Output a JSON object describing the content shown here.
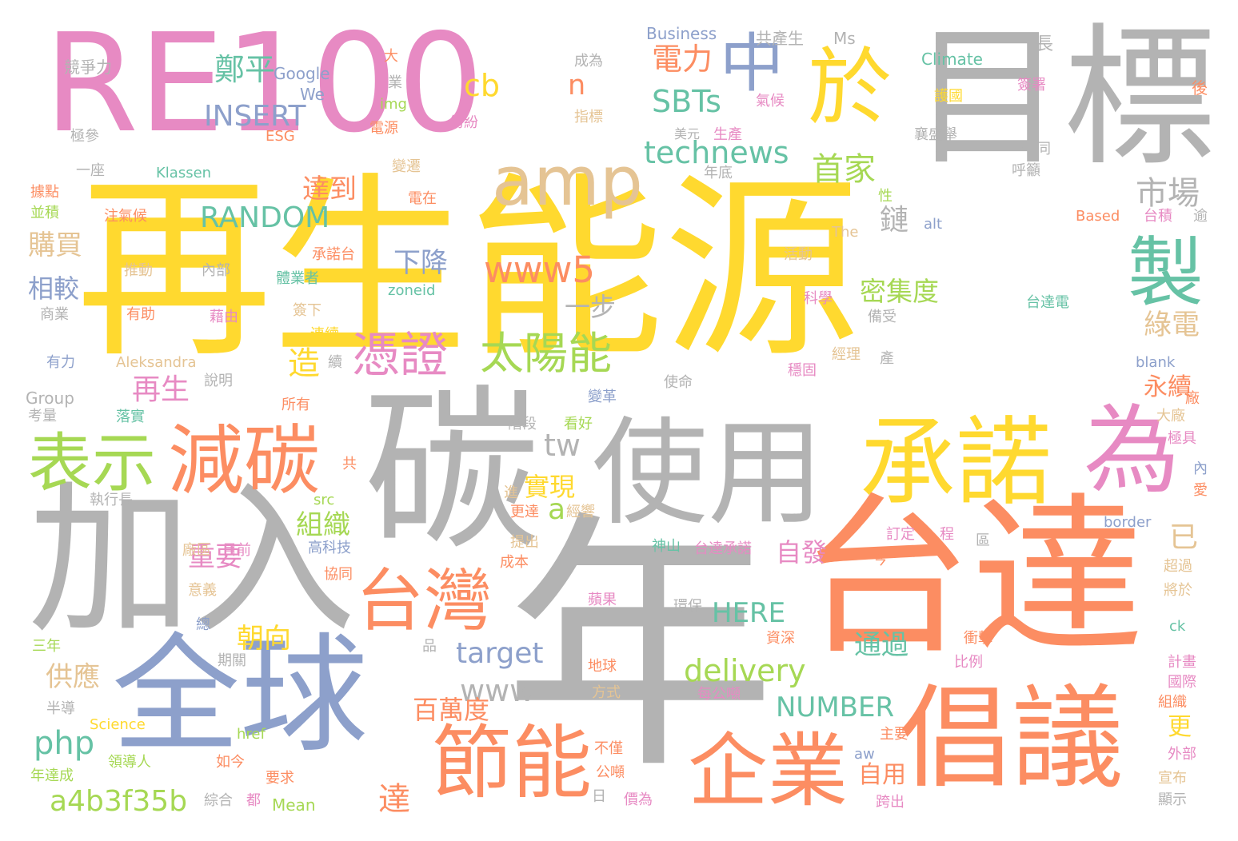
{
  "palette": {
    "yellow": "#FFD92F",
    "gray": "#B3B3B3",
    "pink": "#E78AC3",
    "orange": "#FC8D62",
    "blue": "#8DA0CB",
    "green": "#A6D854",
    "teal": "#66C2A5",
    "tan": "#E5C494"
  },
  "words": [
    {
      "text": "再生能源",
      "color": "#FFD92F"
    },
    {
      "text": "年",
      "color": "#B3B3B3"
    },
    {
      "text": "RE100",
      "color": "#E78AC3"
    },
    {
      "text": "目標",
      "color": "#B3B3B3"
    },
    {
      "text": "台達",
      "color": "#FC8D62"
    },
    {
      "text": "碳",
      "color": "#B3B3B3"
    },
    {
      "text": "加入",
      "color": "#B3B3B3"
    },
    {
      "text": "全球",
      "color": "#8DA0CB"
    },
    {
      "text": "使用",
      "color": "#B3B3B3"
    },
    {
      "text": "倡議",
      "color": "#FC8D62"
    },
    {
      "text": "承諾",
      "color": "#FFD92F"
    },
    {
      "text": "為",
      "color": "#E78AC3"
    },
    {
      "text": "企業",
      "color": "#FC8D62"
    },
    {
      "text": "節能",
      "color": "#FC8D62"
    },
    {
      "text": "減碳",
      "color": "#FC8D62"
    },
    {
      "text": "表示",
      "color": "#A6D854"
    },
    {
      "text": "於",
      "color": "#FFD92F"
    },
    {
      "text": "中",
      "color": "#8DA0CB"
    },
    {
      "text": "台灣",
      "color": "#FC8D62"
    },
    {
      "text": "製",
      "color": "#66C2A5"
    },
    {
      "text": "amp",
      "color": "#E5C494"
    },
    {
      "text": "憑證",
      "color": "#E78AC3"
    },
    {
      "text": "太陽能",
      "color": "#A6D854"
    },
    {
      "text": "www5",
      "color": "#FC8D62"
    },
    {
      "text": "technews",
      "color": "#66C2A5"
    },
    {
      "text": "RANDOM",
      "color": "#66C2A5"
    },
    {
      "text": "INSERT",
      "color": "#8DA0CB"
    },
    {
      "text": "SBTs",
      "color": "#66C2A5"
    },
    {
      "text": "首家",
      "color": "#A6D854"
    },
    {
      "text": "鄭平",
      "color": "#66C2A5"
    },
    {
      "text": "電力",
      "color": "#FC8D62"
    },
    {
      "text": "cb",
      "color": "#FFD92F"
    },
    {
      "text": "n",
      "color": "#FC8D62"
    },
    {
      "text": "市場",
      "color": "#B3B3B3"
    },
    {
      "text": "delivery",
      "color": "#A6D854"
    },
    {
      "text": "www",
      "color": "#B3B3B3"
    },
    {
      "text": "target",
      "color": "#8DA0CB"
    },
    {
      "text": "NUMBER",
      "color": "#66C2A5"
    },
    {
      "text": "a4b3f35b",
      "color": "#A6D854"
    },
    {
      "text": "php",
      "color": "#66C2A5"
    },
    {
      "text": "HERE",
      "color": "#66C2A5"
    },
    {
      "text": "tw",
      "color": "#B3B3B3"
    },
    {
      "text": "a",
      "color": "#A6D854"
    },
    {
      "text": "下降",
      "color": "#8DA0CB"
    },
    {
      "text": "一步",
      "color": "#B3B3B3"
    },
    {
      "text": "密集度",
      "color": "#A6D854"
    },
    {
      "text": "鏈",
      "color": "#B3B3B3"
    },
    {
      "text": "綠電",
      "color": "#E5C494"
    },
    {
      "text": "永續",
      "color": "#FC8D62"
    },
    {
      "text": "已",
      "color": "#E5C494"
    },
    {
      "text": "更",
      "color": "#FFD92F"
    },
    {
      "text": "達到",
      "color": "#FC8D62"
    },
    {
      "text": "購買",
      "color": "#E5C494"
    },
    {
      "text": "相較",
      "color": "#8DA0CB"
    },
    {
      "text": "造",
      "color": "#FFD92F"
    },
    {
      "text": "再生",
      "color": "#E78AC3"
    },
    {
      "text": "組織",
      "color": "#A6D854"
    },
    {
      "text": "重要",
      "color": "#E78AC3"
    },
    {
      "text": "實現",
      "color": "#FFD92F"
    },
    {
      "text": "朝向",
      "color": "#FFD92F"
    },
    {
      "text": "供應",
      "color": "#E5C494"
    },
    {
      "text": "百萬度",
      "color": "#FC8D62"
    },
    {
      "text": "通過",
      "color": "#66C2A5"
    },
    {
      "text": "自發",
      "color": "#E78AC3"
    },
    {
      "text": "自用",
      "color": "#FC8D62"
    },
    {
      "text": "達",
      "color": "#FC8D62"
    },
    {
      "text": "Business",
      "color": "#8DA0CB"
    },
    {
      "text": "共產生",
      "color": "#B3B3B3"
    },
    {
      "text": "Ms",
      "color": "#B3B3B3"
    },
    {
      "text": "長",
      "color": "#B3B3B3"
    },
    {
      "text": "Climate",
      "color": "#66C2A5"
    },
    {
      "text": "競爭力",
      "color": "#B3B3B3"
    },
    {
      "text": "Google",
      "color": "#8DA0CB"
    },
    {
      "text": "We",
      "color": "#8DA0CB"
    },
    {
      "text": "img",
      "color": "#A6D854"
    },
    {
      "text": "電源",
      "color": "#FC8D62"
    },
    {
      "text": "紛紛",
      "color": "#E78AC3"
    },
    {
      "text": "指標",
      "color": "#E5C494"
    },
    {
      "text": "成為",
      "color": "#B3B3B3"
    },
    {
      "text": "大",
      "color": "#FC8D62"
    },
    {
      "text": "業",
      "color": "#B3B3B3"
    },
    {
      "text": "護國",
      "color": "#FFD92F"
    },
    {
      "text": "簽署",
      "color": "#E78AC3"
    },
    {
      "text": "氣候",
      "color": "#E78AC3"
    },
    {
      "text": "後",
      "color": "#FC8D62"
    },
    {
      "text": "極參",
      "color": "#B3B3B3"
    },
    {
      "text": "ESG",
      "color": "#FC8D62"
    },
    {
      "text": "美元",
      "color": "#B3B3B3"
    },
    {
      "text": "生產",
      "color": "#E78AC3"
    },
    {
      "text": "襄盛舉",
      "color": "#B3B3B3"
    },
    {
      "text": "一同",
      "color": "#B3B3B3"
    },
    {
      "text": "呼籲",
      "color": "#B3B3B3"
    },
    {
      "text": "一座",
      "color": "#B3B3B3"
    },
    {
      "text": "Klassen",
      "color": "#66C2A5"
    },
    {
      "text": "變遷",
      "color": "#E5C494"
    },
    {
      "text": "年底",
      "color": "#B3B3B3"
    },
    {
      "text": "據點",
      "color": "#FC8D62"
    },
    {
      "text": "並積",
      "color": "#A6D854"
    },
    {
      "text": "注氣候",
      "color": "#FC8D62"
    },
    {
      "text": "電在",
      "color": "#FC8D62"
    },
    {
      "text": "性",
      "color": "#A6D854"
    },
    {
      "text": "Based",
      "color": "#FC8D62"
    },
    {
      "text": "台積",
      "color": "#E78AC3"
    },
    {
      "text": "逾",
      "color": "#B3B3B3"
    },
    {
      "text": "alt",
      "color": "#8DA0CB"
    },
    {
      "text": "The",
      "color": "#E5C494"
    },
    {
      "text": "承諾台",
      "color": "#FC8D62"
    },
    {
      "text": "活動",
      "color": "#E5C494"
    },
    {
      "text": "推動",
      "color": "#E5C494"
    },
    {
      "text": "內部",
      "color": "#B3B3B3"
    },
    {
      "text": "體業者",
      "color": "#66C2A5"
    },
    {
      "text": "zoneid",
      "color": "#66C2A5"
    },
    {
      "text": "科學",
      "color": "#E78AC3"
    },
    {
      "text": "台達電",
      "color": "#66C2A5"
    },
    {
      "text": "商業",
      "color": "#B3B3B3"
    },
    {
      "text": "有助",
      "color": "#FC8D62"
    },
    {
      "text": "藉由",
      "color": "#E78AC3"
    },
    {
      "text": "簽下",
      "color": "#E5C494"
    },
    {
      "text": "連續",
      "color": "#FFD92F"
    },
    {
      "text": "備受",
      "color": "#B3B3B3"
    },
    {
      "text": "有力",
      "color": "#8DA0CB"
    },
    {
      "text": "Aleksandra",
      "color": "#E5C494"
    },
    {
      "text": "續",
      "color": "#B3B3B3"
    },
    {
      "text": "經理",
      "color": "#E5C494"
    },
    {
      "text": "產",
      "color": "#B3B3B3"
    },
    {
      "text": "穩固",
      "color": "#E78AC3"
    },
    {
      "text": "blank",
      "color": "#8DA0CB"
    },
    {
      "text": "Group",
      "color": "#B3B3B3"
    },
    {
      "text": "說明",
      "color": "#B3B3B3"
    },
    {
      "text": "考量",
      "color": "#B3B3B3"
    },
    {
      "text": "所有",
      "color": "#FC8D62"
    },
    {
      "text": "使命",
      "color": "#B3B3B3"
    },
    {
      "text": "變革",
      "color": "#8DA0CB"
    },
    {
      "text": "廠",
      "color": "#FC8D62"
    },
    {
      "text": "落實",
      "color": "#66C2A5"
    },
    {
      "text": "階段",
      "color": "#B3B3B3"
    },
    {
      "text": "看好",
      "color": "#A6D854"
    },
    {
      "text": "大廠",
      "color": "#E5C494"
    },
    {
      "text": "極具",
      "color": "#E78AC3"
    },
    {
      "text": "共",
      "color": "#FC8D62"
    },
    {
      "text": "執行長",
      "color": "#B3B3B3"
    },
    {
      "text": "src",
      "color": "#A6D854"
    },
    {
      "text": "進",
      "color": "#E5C494"
    },
    {
      "text": "更達",
      "color": "#FC8D62"
    },
    {
      "text": "經響",
      "color": "#E5C494"
    },
    {
      "text": "內",
      "color": "#8DA0CB"
    },
    {
      "text": "愛",
      "color": "#FC8D62"
    },
    {
      "text": "border",
      "color": "#8DA0CB"
    },
    {
      "text": "廠區",
      "color": "#E5C494"
    },
    {
      "text": "目前",
      "color": "#E78AC3"
    },
    {
      "text": "提出",
      "color": "#E5C494"
    },
    {
      "text": "神山",
      "color": "#66C2A5"
    },
    {
      "text": "台達承諾",
      "color": "#E78AC3"
    },
    {
      "text": "訂定",
      "color": "#E78AC3"
    },
    {
      "text": "程",
      "color": "#E78AC3"
    },
    {
      "text": "區",
      "color": "#B3B3B3"
    },
    {
      "text": "高科技",
      "color": "#8DA0CB"
    },
    {
      "text": "協同",
      "color": "#FC8D62"
    },
    {
      "text": "成本",
      "color": "#FC8D62"
    },
    {
      "text": "今",
      "color": "#FC8D62"
    },
    {
      "text": "超過",
      "color": "#E5C494"
    },
    {
      "text": "將於",
      "color": "#E5C494"
    },
    {
      "text": "意義",
      "color": "#E5C494"
    },
    {
      "text": "蘋果",
      "color": "#E78AC3"
    },
    {
      "text": "環保",
      "color": "#B3B3B3"
    },
    {
      "text": "三年",
      "color": "#A6D854"
    },
    {
      "text": "總",
      "color": "#8DA0CB"
    },
    {
      "text": "品",
      "color": "#B3B3B3"
    },
    {
      "text": "資深",
      "color": "#FC8D62"
    },
    {
      "text": "衝擊",
      "color": "#FC8D62"
    },
    {
      "text": "ck",
      "color": "#66C2A5"
    },
    {
      "text": "期關",
      "color": "#B3B3B3"
    },
    {
      "text": "地球",
      "color": "#FC8D62"
    },
    {
      "text": "比例",
      "color": "#E78AC3"
    },
    {
      "text": "計畫",
      "color": "#E78AC3"
    },
    {
      "text": "國際",
      "color": "#E78AC3"
    },
    {
      "text": "方式",
      "color": "#E5C494"
    },
    {
      "text": "每公噸",
      "color": "#E78AC3"
    },
    {
      "text": "半導",
      "color": "#B3B3B3"
    },
    {
      "text": "Science",
      "color": "#FFD92F"
    },
    {
      "text": "組織",
      "color": "#FC8D62"
    },
    {
      "text": "主要",
      "color": "#FC8D62"
    },
    {
      "text": "href",
      "color": "#A6D854"
    },
    {
      "text": "不僅",
      "color": "#FC8D62"
    },
    {
      "text": "外部",
      "color": "#E78AC3"
    },
    {
      "text": "領導人",
      "color": "#A6D854"
    },
    {
      "text": "如今",
      "color": "#FC8D62"
    },
    {
      "text": "aw",
      "color": "#8DA0CB"
    },
    {
      "text": "公噸",
      "color": "#FC8D62"
    },
    {
      "text": "宣布",
      "color": "#E5C494"
    },
    {
      "text": "年達成",
      "color": "#A6D854"
    },
    {
      "text": "要求",
      "color": "#FC8D62"
    },
    {
      "text": "日",
      "color": "#B3B3B3"
    },
    {
      "text": "價為",
      "color": "#E78AC3"
    },
    {
      "text": "跨出",
      "color": "#E78AC3"
    },
    {
      "text": "顯示",
      "color": "#B3B3B3"
    },
    {
      "text": "綜合",
      "color": "#B3B3B3"
    },
    {
      "text": "都",
      "color": "#E78AC3"
    },
    {
      "text": "Mean",
      "color": "#A6D854"
    }
  ]
}
